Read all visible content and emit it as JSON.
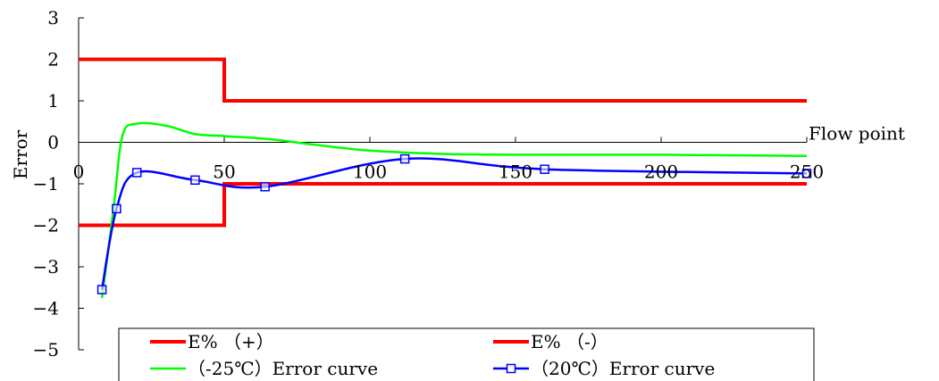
{
  "chart_data": {
    "type": "line",
    "title": "",
    "xlabel": "Flow point",
    "ylabel": "Error",
    "xlim": [
      0,
      250
    ],
    "ylim": [
      -5,
      3
    ],
    "x_ticks": [
      "0",
      "50",
      "100",
      "150",
      "200",
      "250"
    ],
    "y_ticks": [
      "3",
      "2",
      "1",
      "0",
      "-1",
      "-2",
      "-3",
      "-4",
      "-5"
    ],
    "grid": false,
    "legend_position": "bottom",
    "series": [
      {
        "name": "E% （+）",
        "color": "#ff0000",
        "style": "step",
        "x": [
          0,
          50,
          50,
          250
        ],
        "y": [
          2,
          2,
          1,
          1
        ]
      },
      {
        "name": "E% （-）",
        "color": "#ff0000",
        "style": "step",
        "x": [
          0,
          50,
          50,
          250
        ],
        "y": [
          -2,
          -2,
          -1,
          -1
        ]
      },
      {
        "name": "（-25℃）Error curve",
        "color": "#00ff00",
        "style": "smooth",
        "x": [
          8,
          12,
          15,
          20,
          30,
          40,
          50,
          65,
          80,
          100,
          125,
          150,
          200,
          250
        ],
        "y": [
          -3.75,
          -1.6,
          0.15,
          0.45,
          0.4,
          0.2,
          0.15,
          0.08,
          -0.05,
          -0.2,
          -0.28,
          -0.3,
          -0.3,
          -0.33
        ]
      },
      {
        "name": "（20℃）Error curve",
        "color": "#0000ff",
        "style": "smooth",
        "marker": "square",
        "x": [
          8,
          13,
          20,
          40,
          64,
          112,
          160,
          250
        ],
        "y": [
          -3.55,
          -1.6,
          -0.73,
          -0.91,
          -1.07,
          -0.4,
          -0.65,
          -0.75
        ]
      }
    ]
  }
}
